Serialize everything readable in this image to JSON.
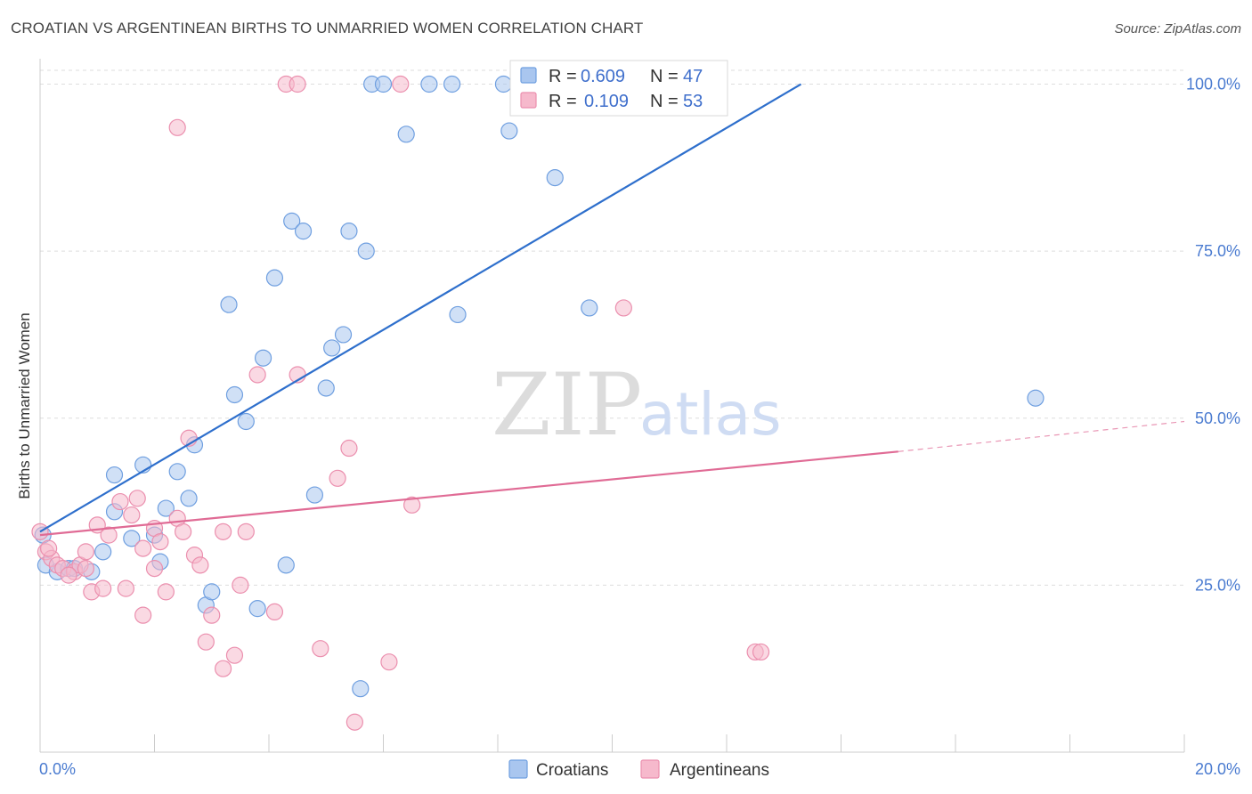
{
  "title": "CROATIAN VS ARGENTINEAN BIRTHS TO UNMARRIED WOMEN CORRELATION CHART",
  "source": "Source: ZipAtlas.com",
  "watermark": {
    "zip": "ZIP",
    "atlas": "atlas"
  },
  "colors": {
    "croatians_fill": "#a9c6ef",
    "croatians_stroke": "#6f9fe0",
    "croatians_line": "#2e6fcc",
    "argentineans_fill": "#f6b9cc",
    "argentineans_stroke": "#eb8fae",
    "argentineans_line": "#e06b95",
    "tick_text": "#4a7bd0",
    "grid": "#dddddd"
  },
  "legend": {
    "rows": [
      {
        "r_label": "R =",
        "r_value": "0.609",
        "n_label": "N =",
        "n_value": "47"
      },
      {
        "r_label": "R =",
        "r_value": "0.109",
        "n_label": "N =",
        "n_value": "53"
      }
    ]
  },
  "chart_data": {
    "type": "scatter",
    "ylabel": "Births to Unmarried Women",
    "xlim": [
      0,
      20
    ],
    "ylim": [
      0,
      105
    ],
    "x_tick_labels": [
      "0.0%",
      "20.0%"
    ],
    "y_ticks": [
      25,
      50,
      75,
      100
    ],
    "y_tick_labels": [
      "25.0%",
      "50.0%",
      "75.0%",
      "100.0%"
    ],
    "grid": true,
    "legend_position": "top-center",
    "series": [
      {
        "name": "Croatians",
        "trend": {
          "x": [
            0,
            13.3
          ],
          "y": [
            33,
            100
          ]
        },
        "points": [
          [
            0.1,
            28
          ],
          [
            0.3,
            27
          ],
          [
            0.5,
            27.5
          ],
          [
            0.9,
            27
          ],
          [
            1.1,
            30
          ],
          [
            1.3,
            41.5
          ],
          [
            1.3,
            36
          ],
          [
            1.6,
            32
          ],
          [
            1.8,
            43
          ],
          [
            2.0,
            32.5
          ],
          [
            2.1,
            28.5
          ],
          [
            2.2,
            36.5
          ],
          [
            2.4,
            42
          ],
          [
            2.6,
            38
          ],
          [
            2.7,
            46
          ],
          [
            2.9,
            22
          ],
          [
            3.0,
            24
          ],
          [
            3.3,
            67
          ],
          [
            3.4,
            53.5
          ],
          [
            3.6,
            49.5
          ],
          [
            3.8,
            21.5
          ],
          [
            3.9,
            59
          ],
          [
            4.1,
            71
          ],
          [
            4.3,
            28
          ],
          [
            4.4,
            79.5
          ],
          [
            4.6,
            78
          ],
          [
            4.8,
            38.5
          ],
          [
            5.0,
            54.5
          ],
          [
            5.1,
            60.5
          ],
          [
            5.3,
            62.5
          ],
          [
            5.4,
            78
          ],
          [
            5.6,
            9.5
          ],
          [
            5.7,
            75
          ],
          [
            5.8,
            100
          ],
          [
            6.0,
            100
          ],
          [
            6.4,
            92.5
          ],
          [
            6.8,
            100
          ],
          [
            7.2,
            100
          ],
          [
            7.3,
            65.5
          ],
          [
            8.1,
            100
          ],
          [
            8.2,
            93
          ],
          [
            8.6,
            100
          ],
          [
            9.0,
            86
          ],
          [
            9.6,
            66.5
          ],
          [
            17.4,
            53
          ],
          [
            0.05,
            32.5
          ],
          [
            0.6,
            27.5
          ]
        ]
      },
      {
        "name": "Argentineans",
        "trend": {
          "x": [
            0,
            15
          ],
          "y": [
            32.5,
            45
          ],
          "dashed_to": {
            "x": 20,
            "y": 49.5
          }
        },
        "points": [
          [
            0.1,
            30
          ],
          [
            0.2,
            29
          ],
          [
            0.3,
            28
          ],
          [
            0.4,
            27.5
          ],
          [
            0.6,
            27
          ],
          [
            0.7,
            28
          ],
          [
            0.8,
            30
          ],
          [
            0.9,
            24
          ],
          [
            1.0,
            34
          ],
          [
            1.1,
            24.5
          ],
          [
            1.2,
            32.5
          ],
          [
            1.4,
            37.5
          ],
          [
            1.5,
            24.5
          ],
          [
            1.6,
            35.5
          ],
          [
            1.7,
            38
          ],
          [
            1.8,
            30.5
          ],
          [
            1.8,
            20.5
          ],
          [
            2.0,
            33.5
          ],
          [
            2.0,
            27.5
          ],
          [
            2.1,
            31.5
          ],
          [
            2.2,
            24
          ],
          [
            2.4,
            93.5
          ],
          [
            2.4,
            35
          ],
          [
            2.5,
            33
          ],
          [
            2.6,
            47
          ],
          [
            2.7,
            29.5
          ],
          [
            2.8,
            28
          ],
          [
            2.9,
            16.5
          ],
          [
            3.0,
            20.5
          ],
          [
            3.2,
            33
          ],
          [
            3.2,
            12.5
          ],
          [
            3.4,
            14.5
          ],
          [
            3.5,
            25
          ],
          [
            3.6,
            33
          ],
          [
            3.8,
            56.5
          ],
          [
            4.1,
            21
          ],
          [
            4.3,
            100
          ],
          [
            4.5,
            100
          ],
          [
            4.5,
            56.5
          ],
          [
            4.9,
            15.5
          ],
          [
            5.2,
            41
          ],
          [
            5.4,
            45.5
          ],
          [
            5.5,
            4.5
          ],
          [
            6.1,
            13.5
          ],
          [
            6.3,
            100
          ],
          [
            6.5,
            37
          ],
          [
            10.2,
            66.5
          ],
          [
            12.5,
            15
          ],
          [
            12.6,
            15
          ],
          [
            0.0,
            33
          ],
          [
            0.5,
            26.5
          ],
          [
            0.15,
            30.5
          ],
          [
            0.8,
            27.5
          ]
        ]
      }
    ]
  }
}
